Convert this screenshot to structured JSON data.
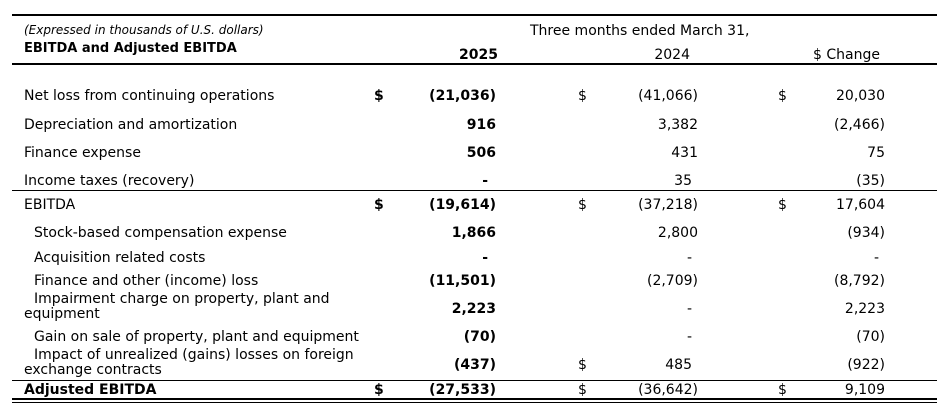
{
  "header": {
    "note": "(Expressed in thousands of U.S. dollars)",
    "title": "EBITDA and Adjusted EBITDA",
    "period": "Three months ended March 31,",
    "col_2025": "2025",
    "col_2024": "2024",
    "col_change": "$ Change"
  },
  "currency_symbol": "$",
  "rows": [
    {
      "label": "Net loss from continuing operations",
      "v2025": "(21,036)",
      "v2024": "(41,066)",
      "change": "20,030"
    },
    {
      "label": "Depreciation and amortization",
      "v2025": "916",
      "v2024": "3,382",
      "change": "(2,466)"
    },
    {
      "label": "Finance expense",
      "v2025": "506",
      "v2024": "431",
      "change": "75"
    },
    {
      "label": "Income taxes (recovery)",
      "v2025": "-",
      "v2024": "35",
      "change": "(35)"
    },
    {
      "label": "EBITDA",
      "v2025": "(19,614)",
      "v2024": "(37,218)",
      "change": "17,604"
    },
    {
      "label": "Stock-based compensation expense",
      "v2025": "1,866",
      "v2024": "2,800",
      "change": "(934)"
    },
    {
      "label": "Acquisition related costs",
      "v2025": "-",
      "v2024": "-",
      "change": "-"
    },
    {
      "label": "Finance and other (income) loss",
      "v2025": "(11,501)",
      "v2024": "(2,709)",
      "change": "(8,792)"
    },
    {
      "label_line1": "Impairment charge on property, plant and",
      "label_line2": "equipment",
      "v2025": "2,223",
      "v2024": "-",
      "change": "2,223"
    },
    {
      "label": "Gain on sale of property, plant and equipment",
      "v2025": "(70)",
      "v2024": "-",
      "change": "(70)"
    },
    {
      "label_line1": "Impact of unrealized (gains) losses on foreign",
      "label_line2": "exchange contracts",
      "v2025": "(437)",
      "v2024": "485",
      "change": "(922)"
    },
    {
      "label": "Adjusted EBITDA",
      "v2025": "(27,533)",
      "v2024": "(36,642)",
      "change": "9,109"
    }
  ]
}
